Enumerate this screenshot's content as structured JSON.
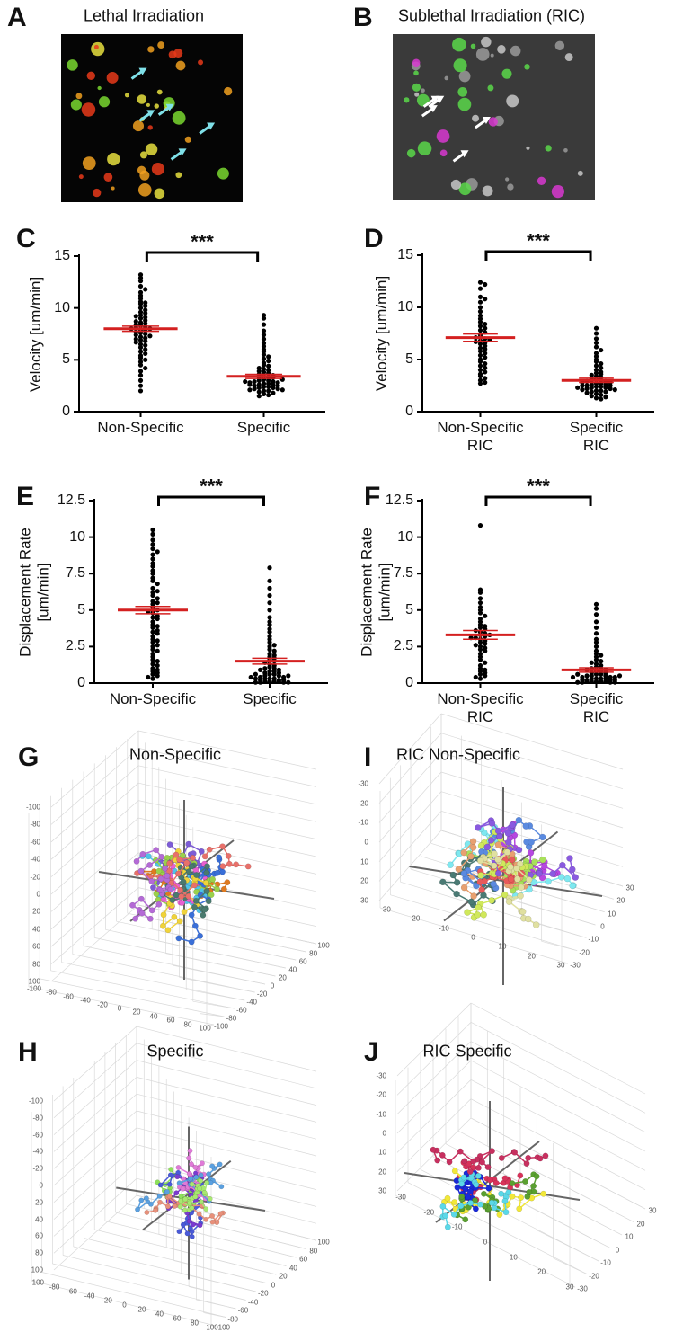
{
  "chart_data": [
    {
      "type": "image",
      "panel": "A",
      "title": "Lethal Irradiation"
    },
    {
      "type": "image",
      "panel": "B",
      "title": "Sublethal Irradiation (RIC)"
    },
    {
      "type": "dot",
      "panel": "C",
      "y_label": "Velocity [um/min]",
      "categories": [
        "Non-Specific",
        "Specific"
      ],
      "ylim": [
        0,
        15
      ],
      "yticks": [
        0,
        5,
        10,
        15
      ],
      "significance": "***",
      "color": "#000000",
      "mean_color": "#d42020",
      "means": [
        8.0,
        3.4
      ],
      "sems": [
        0.25,
        0.2
      ],
      "values": [
        [
          13.2,
          12.9,
          12.6,
          12.1,
          11.8,
          11.5,
          11.2,
          10.9,
          10.6,
          10.4,
          10.2,
          10.0,
          9.8,
          9.6,
          9.5,
          9.3,
          9.1,
          9.0,
          8.8,
          8.7,
          8.6,
          8.5,
          8.4,
          8.3,
          8.2,
          8.1,
          8.0,
          8.0,
          7.9,
          7.8,
          7.7,
          7.6,
          7.5,
          7.4,
          7.3,
          7.2,
          7.1,
          7.0,
          6.9,
          6.8,
          6.7,
          6.5,
          6.4,
          6.2,
          6.0,
          5.8,
          5.6,
          5.4,
          5.2,
          5.0,
          4.8,
          4.5,
          4.2,
          3.9,
          3.5,
          3.0,
          2.5,
          2.0,
          10.5,
          9.2
        ],
        [
          9.3,
          9.0,
          8.4,
          7.8,
          7.4,
          7.0,
          6.6,
          6.3,
          6.0,
          5.8,
          5.5,
          5.3,
          5.1,
          4.9,
          4.7,
          4.5,
          4.4,
          4.2,
          4.1,
          4.0,
          3.9,
          3.8,
          3.7,
          3.6,
          3.5,
          3.4,
          3.3,
          3.2,
          3.1,
          3.0,
          3.0,
          2.9,
          2.9,
          2.8,
          2.8,
          2.7,
          2.7,
          2.6,
          2.6,
          2.5,
          2.5,
          2.4,
          2.4,
          2.3,
          2.3,
          2.2,
          2.2,
          2.1,
          2.1,
          2.0,
          2.0,
          1.9,
          1.8,
          1.7,
          1.6,
          1.5,
          3.3,
          3.1,
          2.9,
          2.6
        ]
      ]
    },
    {
      "type": "dot",
      "panel": "D",
      "y_label": "Velocity [um/min]",
      "categories": [
        "Non-Specific\nRIC",
        "Specific\nRIC"
      ],
      "ylim": [
        0,
        15
      ],
      "yticks": [
        0,
        5,
        10,
        15
      ],
      "significance": "***",
      "color": "#000000",
      "mean_color": "#d42020",
      "means": [
        7.1,
        3.0
      ],
      "sems": [
        0.35,
        0.2
      ],
      "values": [
        [
          12.4,
          12.2,
          11.8,
          11.0,
          10.8,
          10.5,
          10.0,
          9.6,
          9.2,
          8.9,
          8.6,
          8.4,
          8.2,
          8.0,
          7.8,
          7.6,
          7.4,
          7.2,
          7.0,
          6.8,
          6.6,
          6.5,
          6.3,
          6.1,
          6.0,
          5.8,
          5.6,
          5.4,
          5.2,
          5.0,
          4.8,
          4.6,
          4.4,
          4.2,
          4.0,
          3.8,
          3.6,
          3.4,
          3.2,
          3.0,
          2.8,
          2.7,
          7.1,
          6.9,
          6.7
        ],
        [
          8.0,
          7.5,
          7.0,
          6.6,
          6.2,
          5.9,
          5.6,
          5.3,
          5.0,
          4.8,
          4.6,
          4.4,
          4.2,
          4.0,
          3.8,
          3.7,
          3.6,
          3.5,
          3.4,
          3.3,
          3.2,
          3.1,
          3.0,
          3.0,
          2.9,
          2.9,
          2.8,
          2.8,
          2.7,
          2.7,
          2.6,
          2.6,
          2.5,
          2.5,
          2.4,
          2.4,
          2.3,
          2.3,
          2.2,
          2.2,
          2.1,
          2.1,
          2.0,
          2.0,
          1.9,
          1.9,
          1.8,
          1.7,
          1.6,
          1.5,
          1.4,
          1.3,
          1.2,
          2.5,
          2.3
        ]
      ]
    },
    {
      "type": "dot",
      "panel": "E",
      "y_label": "Displacement Rate\n[um/min]",
      "categories": [
        "Non-Specific",
        "Specific"
      ],
      "ylim": [
        0,
        12.5
      ],
      "yticks": [
        0,
        2.5,
        5,
        7.5,
        10,
        12.5
      ],
      "significance": "***",
      "color": "#000000",
      "mean_color": "#d42020",
      "means": [
        5.0,
        1.5
      ],
      "sems": [
        0.25,
        0.2
      ],
      "values": [
        [
          10.5,
          10.2,
          9.8,
          9.5,
          9.2,
          9.0,
          8.8,
          8.5,
          8.2,
          8.0,
          7.7,
          7.5,
          7.2,
          7.0,
          6.8,
          6.5,
          6.3,
          6.0,
          5.8,
          5.6,
          5.4,
          5.2,
          5.0,
          5.0,
          4.9,
          4.8,
          4.6,
          4.5,
          4.4,
          4.2,
          4.0,
          3.9,
          3.8,
          3.6,
          3.5,
          3.4,
          3.2,
          3.0,
          2.9,
          2.8,
          2.6,
          2.5,
          2.3,
          2.2,
          2.0,
          1.8,
          1.6,
          1.5,
          1.3,
          1.2,
          1.0,
          0.9,
          0.8,
          0.7,
          0.6,
          0.5,
          0.4,
          0.3,
          6.2,
          5.5
        ],
        [
          7.9,
          7.0,
          6.5,
          6.0,
          5.5,
          5.0,
          4.5,
          4.2,
          4.0,
          3.7,
          3.5,
          3.2,
          3.0,
          2.8,
          2.6,
          2.5,
          2.3,
          2.2,
          2.0,
          1.9,
          1.8,
          1.7,
          1.6,
          1.5,
          1.4,
          1.3,
          1.2,
          1.1,
          1.0,
          1.0,
          0.9,
          0.9,
          0.8,
          0.8,
          0.7,
          0.7,
          0.6,
          0.6,
          0.5,
          0.5,
          0.4,
          0.4,
          0.3,
          0.3,
          0.3,
          0.2,
          0.2,
          0.2,
          0.1,
          0.1,
          0.1,
          0.1,
          0.05,
          0.05,
          0.05,
          0.05,
          0.6,
          0.5,
          0.4,
          0.3
        ]
      ]
    },
    {
      "type": "dot",
      "panel": "F",
      "y_label": "Displacement Rate\n[um/min]",
      "categories": [
        "Non-Specific\nRIC",
        "Specific\nRIC"
      ],
      "ylim": [
        0,
        12.5
      ],
      "yticks": [
        0,
        2.5,
        5,
        7.5,
        10,
        12.5
      ],
      "significance": "***",
      "color": "#000000",
      "mean_color": "#d42020",
      "means": [
        3.3,
        0.9
      ],
      "sems": [
        0.3,
        0.15
      ],
      "values": [
        [
          10.8,
          6.4,
          6.2,
          5.8,
          5.5,
          5.2,
          5.0,
          4.8,
          4.6,
          4.4,
          4.2,
          4.0,
          3.9,
          3.8,
          3.7,
          3.6,
          3.5,
          3.4,
          3.3,
          3.2,
          3.1,
          3.0,
          2.9,
          2.8,
          2.7,
          2.6,
          2.5,
          2.4,
          2.3,
          2.2,
          2.0,
          1.8,
          1.6,
          1.4,
          1.2,
          1.0,
          0.9,
          0.8,
          0.7,
          0.6,
          0.5,
          0.4,
          0.3,
          3.3,
          3.1
        ],
        [
          5.4,
          5.1,
          4.7,
          4.2,
          3.8,
          3.4,
          3.0,
          2.8,
          2.5,
          2.2,
          2.0,
          1.9,
          1.8,
          1.6,
          1.5,
          1.4,
          1.3,
          1.2,
          1.1,
          1.0,
          1.0,
          0.9,
          0.9,
          0.8,
          0.8,
          0.7,
          0.7,
          0.6,
          0.6,
          0.5,
          0.5,
          0.5,
          0.4,
          0.4,
          0.4,
          0.3,
          0.3,
          0.3,
          0.3,
          0.2,
          0.2,
          0.2,
          0.2,
          0.1,
          0.1,
          0.1,
          0.1,
          0.1,
          0.05,
          0.05,
          0.05,
          0.05,
          0.6,
          0.5,
          0.4
        ]
      ]
    },
    {
      "type": "trajectory3d",
      "panel": "G",
      "title": "Non-Specific",
      "zticks": [
        -100,
        -80,
        -60,
        -40,
        -20,
        0,
        20,
        40,
        60,
        80,
        100
      ],
      "xticks": [
        -100,
        -80,
        -60,
        -40,
        -20,
        0,
        20,
        40,
        60,
        80,
        100
      ],
      "yticks": [
        100,
        80,
        60,
        40,
        20,
        0,
        -20,
        -40,
        -60,
        -80,
        -100
      ],
      "track_colors": [
        "#e07a1f",
        "#7d5cd6",
        "#4fc3e8",
        "#9ad14b",
        "#e85fd0",
        "#3a6fd8",
        "#f0d33a",
        "#4a7a6e",
        "#e8706a",
        "#b46ad6"
      ]
    },
    {
      "type": "trajectory3d",
      "panel": "I",
      "title": "RIC Non-Specific",
      "zticks": [
        -30,
        -20,
        -10,
        0,
        10,
        20,
        30
      ],
      "xticks": [
        -30,
        -20,
        -10,
        0,
        10,
        20,
        30
      ],
      "yticks": [
        30,
        20,
        10,
        0,
        -10,
        -20,
        -30
      ],
      "track_colors": [
        "#b648e0",
        "#7ee8f0",
        "#a8e05a",
        "#4a7a74",
        "#e8a070",
        "#5a8ae0",
        "#e85a5a",
        "#d0e85a",
        "#8a5ae0",
        "#e0e0a0"
      ]
    },
    {
      "type": "trajectory3d",
      "panel": "H",
      "title": "Specific",
      "zticks": [
        -100,
        -80,
        -60,
        -40,
        -20,
        0,
        20,
        40,
        60,
        80,
        100
      ],
      "xticks": [
        -100,
        -80,
        -60,
        -40,
        -20,
        0,
        20,
        40,
        60,
        80,
        100
      ],
      "yticks": [
        100,
        80,
        60,
        40,
        20,
        0,
        -20,
        -40,
        -60,
        -80,
        -100
      ],
      "track_colors": [
        "#8ee05a",
        "#4a5ad8",
        "#7a3ad0",
        "#e07ad8",
        "#e8907a",
        "#5aa0e0",
        "#a8e870"
      ]
    },
    {
      "type": "trajectory3d",
      "panel": "J",
      "title": "RIC Specific",
      "zticks": [
        -30,
        -20,
        -10,
        0,
        10,
        20,
        30
      ],
      "xticks": [
        -30,
        -20,
        -10,
        0,
        10,
        20,
        30
      ],
      "yticks": [
        30,
        20,
        10,
        0,
        -10,
        -20,
        -30
      ],
      "track_colors": [
        "#d8325a",
        "#f2e838",
        "#1a2ad8",
        "#5aa030",
        "#5ad8e8",
        "#c83060"
      ]
    }
  ]
}
